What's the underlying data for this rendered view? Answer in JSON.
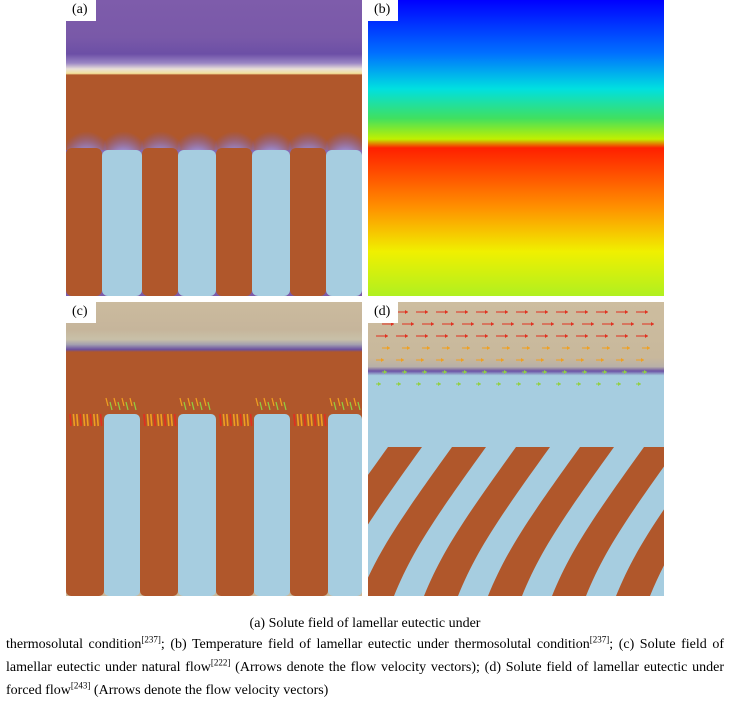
{
  "panels": [
    {
      "id": "a",
      "label": "(a)"
    },
    {
      "id": "b",
      "label": "(b)"
    },
    {
      "id": "c",
      "label": "(c)"
    },
    {
      "id": "d",
      "label": "(d)"
    }
  ],
  "colors": {
    "alpha_phase": "#b0572b",
    "beta_phase": "#a6cde0",
    "liquid_a": "#7b5aa8",
    "liquid_c": "#c9b89b",
    "interface_glow": "#f4e19a",
    "arrow_red": "#e03020",
    "arrow_orange": "#f0a020",
    "arrow_green": "#90d040"
  },
  "caption": {
    "line1": "(a)  Solute  field  of  lamellar  eutectic  under",
    "p1": "thermosolutal condition",
    "r1": "[237]",
    "p2": "; (b) Temperature field of lamellar eutectic under thermosolutal condition",
    "r2": "[237]",
    "p3": "; (c) Solute field of lamellar eutectic under natural flow",
    "r3": "[222]",
    "p4": " (Arrows denote the flow velocity vectors); (d) Solute field of lamellar eutectic under forced flow",
    "r4": "[243]",
    "p5": " (Arrows denote the flow velocity vectors)"
  }
}
